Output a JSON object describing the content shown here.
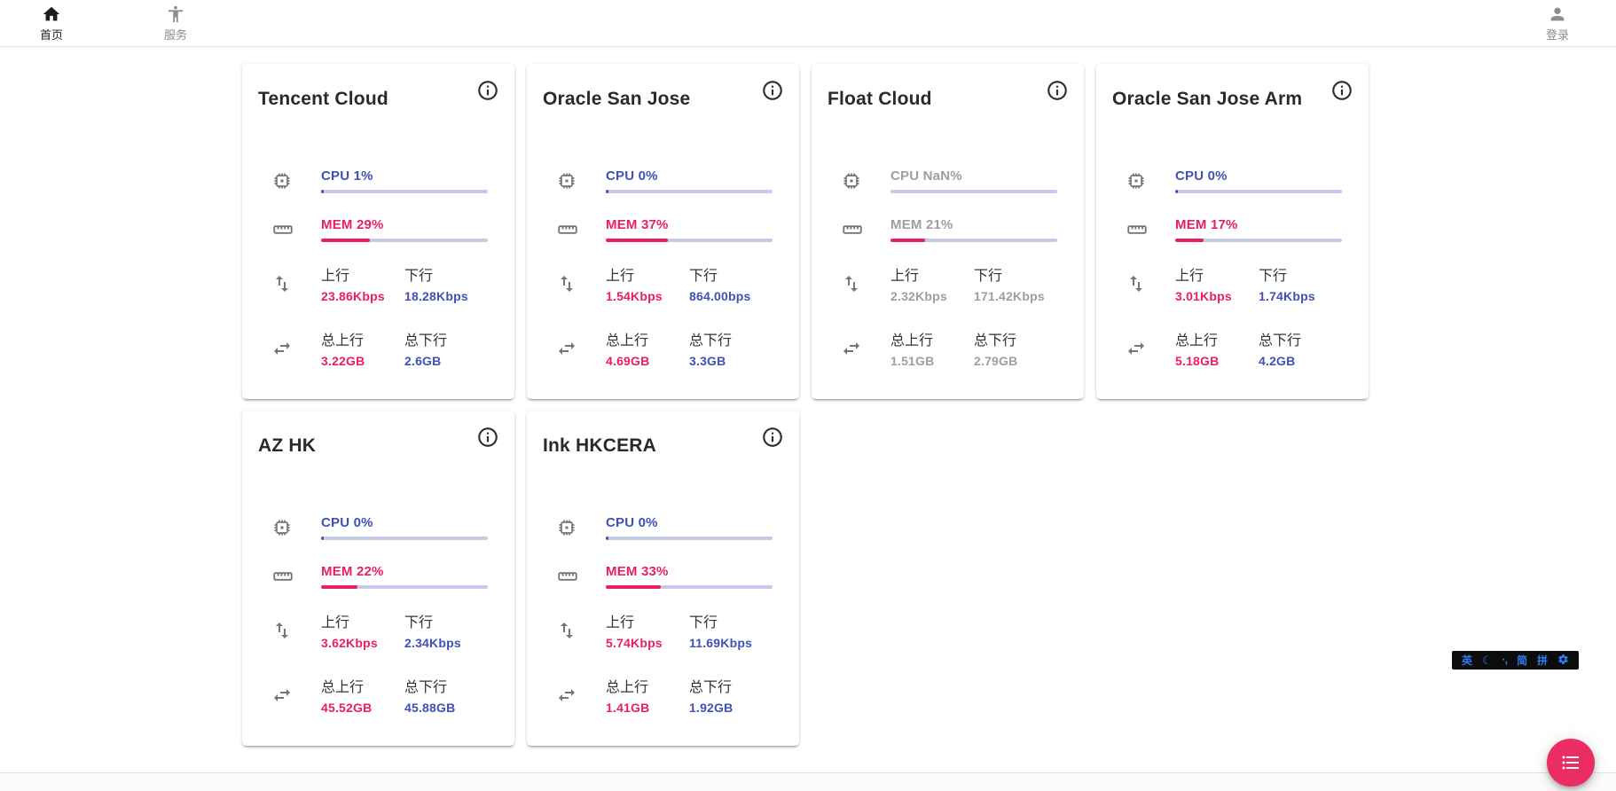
{
  "navbar": {
    "home": {
      "label": "首页",
      "icon": "home-icon"
    },
    "service": {
      "label": "服务",
      "icon": "accessibility-icon"
    },
    "login": {
      "label": "登录",
      "icon": "account-icon"
    }
  },
  "labels": {
    "up": "上行",
    "down": "下行",
    "total_up": "总上行",
    "total_down": "总下行"
  },
  "colors": {
    "accent_blue": "#3f51b5",
    "accent_pink": "#e91e63",
    "bar_track": "#c5cae9",
    "offline_gray": "#9e9e9e",
    "fab_pink": "#ec2d64",
    "ime_blue": "#2e7bf0"
  },
  "servers": [
    {
      "name": "Tencent Cloud",
      "cpu_text": "CPU 1%",
      "cpu_percent": 1,
      "mem_text": "MEM 29%",
      "mem_percent": 29,
      "up_speed": "23.86Kbps",
      "down_speed": "18.28Kbps",
      "total_up": "3.22GB",
      "total_down": "2.6GB",
      "offline": false
    },
    {
      "name": "Oracle San Jose",
      "cpu_text": "CPU 0%",
      "cpu_percent": 0,
      "mem_text": "MEM 37%",
      "mem_percent": 37,
      "up_speed": "1.54Kbps",
      "down_speed": "864.00bps",
      "total_up": "4.69GB",
      "total_down": "3.3GB",
      "offline": false
    },
    {
      "name": "Float Cloud",
      "cpu_text": "CPU NaN%",
      "cpu_percent": null,
      "mem_text": "MEM 21%",
      "mem_percent": 21,
      "up_speed": "2.32Kbps",
      "down_speed": "171.42Kbps",
      "total_up": "1.51GB",
      "total_down": "2.79GB",
      "offline": true
    },
    {
      "name": "Oracle San Jose Arm",
      "cpu_text": "CPU 0%",
      "cpu_percent": 0,
      "mem_text": "MEM 17%",
      "mem_percent": 17,
      "up_speed": "3.01Kbps",
      "down_speed": "1.74Kbps",
      "total_up": "5.18GB",
      "total_down": "4.2GB",
      "offline": false
    },
    {
      "name": "AZ HK",
      "cpu_text": "CPU 0%",
      "cpu_percent": 0,
      "mem_text": "MEM 22%",
      "mem_percent": 22,
      "up_speed": "3.62Kbps",
      "down_speed": "2.34Kbps",
      "total_up": "45.52GB",
      "total_down": "45.88GB",
      "offline": false
    },
    {
      "name": "Ink HKCERA",
      "cpu_text": "CPU 0%",
      "cpu_percent": 0,
      "mem_text": "MEM 33%",
      "mem_percent": 33,
      "up_speed": "5.74Kbps",
      "down_speed": "11.69Kbps",
      "total_up": "1.41GB",
      "total_down": "1.92GB",
      "offline": false
    }
  ],
  "ime": {
    "items": [
      "英",
      "☾",
      "·,",
      "简",
      "拼"
    ],
    "settings_icon": "gear-icon"
  },
  "fab": {
    "icon": "list-icon"
  }
}
